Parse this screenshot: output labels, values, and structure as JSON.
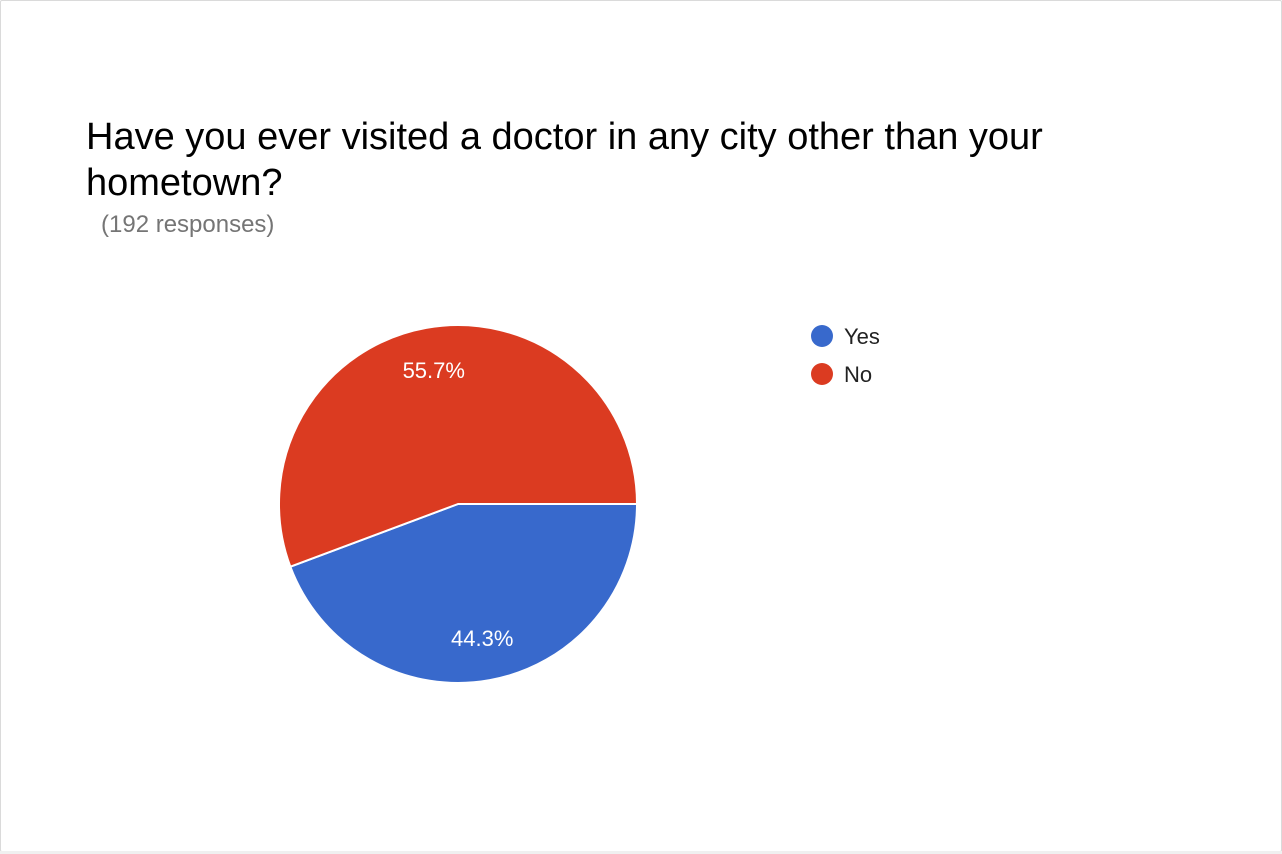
{
  "chart_data": {
    "type": "pie",
    "title": "Have you ever visited a doctor in any city other than your hometown?",
    "subtitle": "(192 responses)",
    "legend_position": "right",
    "slices": [
      {
        "label": "Yes",
        "value": 44.3,
        "value_label": "44.3%",
        "color": "#3869cc"
      },
      {
        "label": "No",
        "value": 55.7,
        "value_label": "55.7%",
        "color": "#db3b21"
      }
    ]
  }
}
